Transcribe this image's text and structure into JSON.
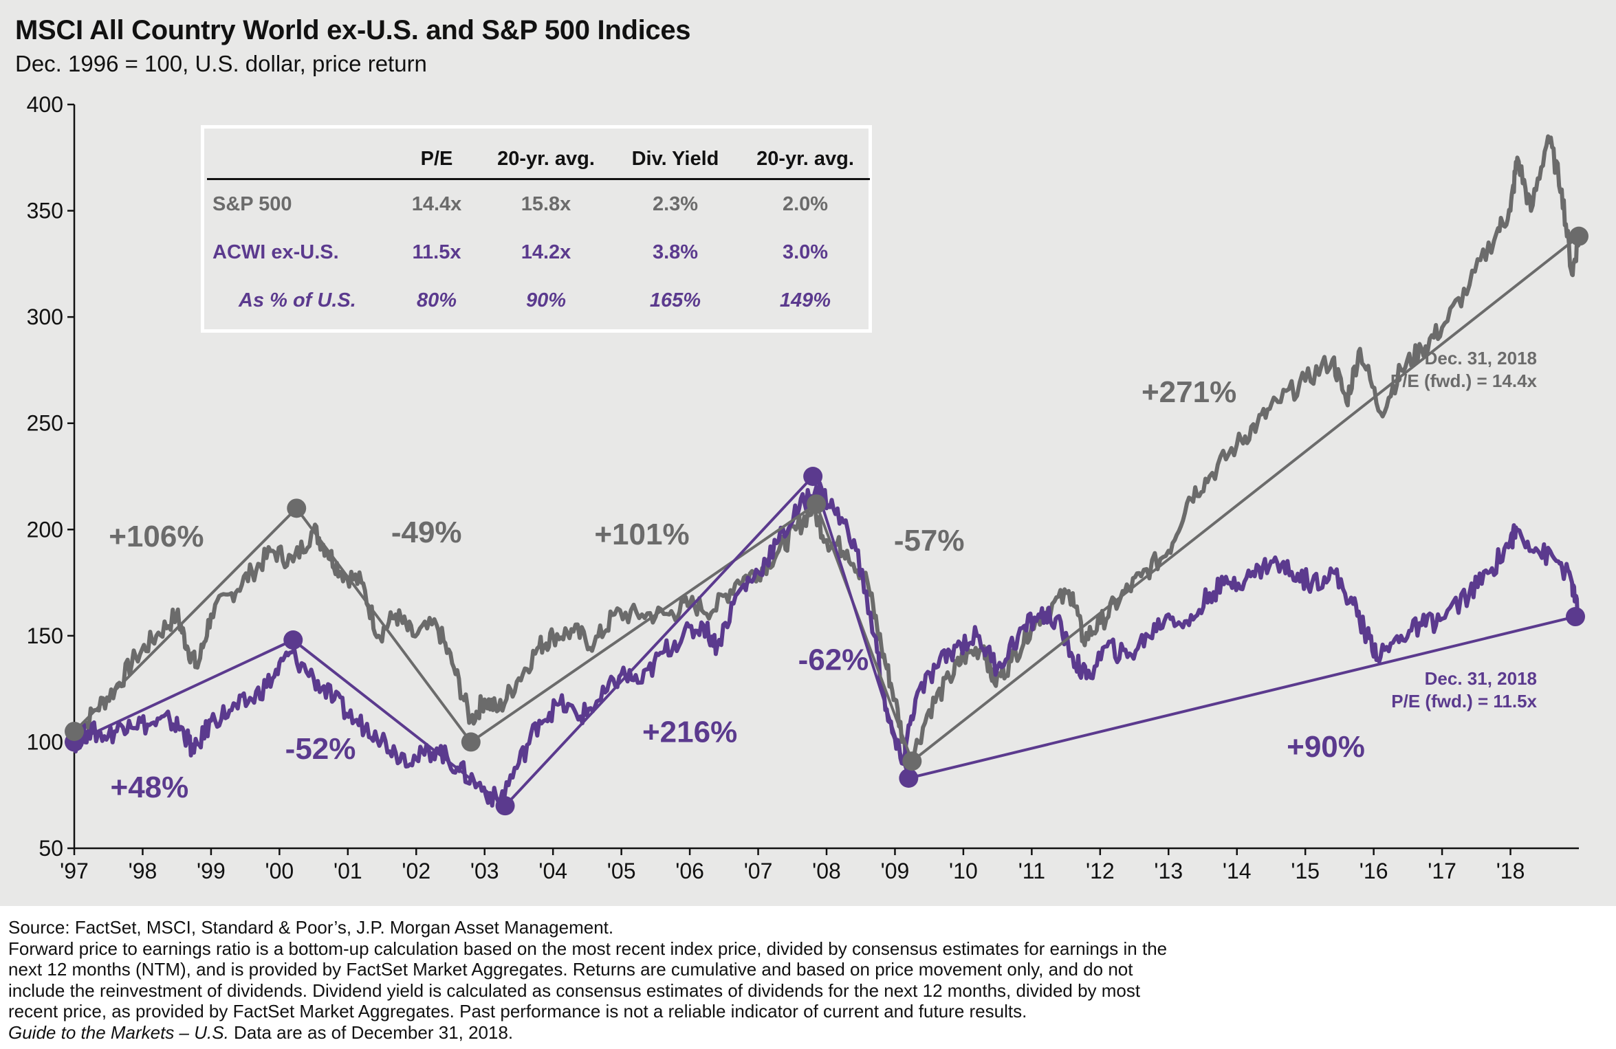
{
  "title": "MSCI All Country World ex-U.S. and S&P 500 Indices",
  "subtitle": "Dec. 1996 = 100, U.S. dollar, price return",
  "colors": {
    "sp500": "#6b6b6b",
    "acwi": "#5b3a8e",
    "background": "#e8e8e7"
  },
  "table": {
    "headers": [
      "",
      "P/E",
      "20-yr. avg.",
      "Div. Yield",
      "20-yr. avg."
    ],
    "rows": [
      {
        "label": "S&P 500",
        "cells": [
          "14.4x",
          "15.8x",
          "2.3%",
          "2.0%"
        ]
      },
      {
        "label": "ACWI ex-U.S.",
        "cells": [
          "11.5x",
          "14.2x",
          "3.8%",
          "3.0%"
        ]
      },
      {
        "label": "As % of U.S.",
        "cells": [
          "80%",
          "90%",
          "165%",
          "149%"
        ]
      }
    ]
  },
  "chart_data": {
    "type": "line",
    "title": "MSCI All Country World ex-U.S. and S&P 500 Indices",
    "ylabel": "Dec. 1996 = 100, U.S. dollar, price return",
    "ylim": [
      50,
      400
    ],
    "yticks": [
      50,
      100,
      150,
      200,
      250,
      300,
      350,
      400
    ],
    "xlim": [
      1997.0,
      2019.0
    ],
    "xticks": [
      {
        "label": "'97",
        "value": 1997
      },
      {
        "label": "'98",
        "value": 1998
      },
      {
        "label": "'99",
        "value": 1999
      },
      {
        "label": "'00",
        "value": 2000
      },
      {
        "label": "'01",
        "value": 2001
      },
      {
        "label": "'02",
        "value": 2002
      },
      {
        "label": "'03",
        "value": 2003
      },
      {
        "label": "'04",
        "value": 2004
      },
      {
        "label": "'05",
        "value": 2005
      },
      {
        "label": "'06",
        "value": 2006
      },
      {
        "label": "'07",
        "value": 2007
      },
      {
        "label": "'08",
        "value": 2008
      },
      {
        "label": "'09",
        "value": 2009
      },
      {
        "label": "'10",
        "value": 2010
      },
      {
        "label": "'11",
        "value": 2011
      },
      {
        "label": "'12",
        "value": 2012
      },
      {
        "label": "'13",
        "value": 2013
      },
      {
        "label": "'14",
        "value": 2014
      },
      {
        "label": "'15",
        "value": 2015
      },
      {
        "label": "'16",
        "value": 2016
      },
      {
        "label": "'17",
        "value": 2017
      },
      {
        "label": "'18",
        "value": 2018
      }
    ],
    "series": [
      {
        "name": "S&P 500",
        "x": [
          1997.0,
          1997.3,
          1997.6,
          1997.9,
          1998.2,
          1998.5,
          1998.65,
          1998.8,
          1999.0,
          1999.3,
          1999.6,
          1999.9,
          2000.2,
          2000.5,
          2000.7,
          2000.9,
          2001.2,
          2001.45,
          2001.7,
          2001.95,
          2002.3,
          2002.55,
          2002.8,
          2003.0,
          2003.2,
          2003.5,
          2003.8,
          2004.0,
          2004.3,
          2004.6,
          2004.9,
          2005.3,
          2005.7,
          2006.0,
          2006.35,
          2006.7,
          2007.0,
          2007.3,
          2007.55,
          2007.8,
          2008.0,
          2008.3,
          2008.6,
          2008.8,
          2009.0,
          2009.2,
          2009.5,
          2009.8,
          2010.0,
          2010.3,
          2010.45,
          2010.7,
          2011.0,
          2011.3,
          2011.6,
          2011.75,
          2012.0,
          2012.3,
          2012.6,
          2013.0,
          2013.3,
          2013.6,
          2014.0,
          2014.3,
          2014.6,
          2015.0,
          2015.4,
          2015.6,
          2015.8,
          2016.1,
          2016.4,
          2016.7,
          2017.0,
          2017.4,
          2017.8,
          2018.0,
          2018.1,
          2018.3,
          2018.55,
          2018.75,
          2018.9,
          2019.0
        ],
        "values": [
          100,
          115,
          125,
          140,
          150,
          160,
          145,
          135,
          160,
          170,
          180,
          190,
          185,
          200,
          190,
          180,
          175,
          150,
          160,
          150,
          155,
          135,
          110,
          120,
          115,
          130,
          145,
          150,
          152,
          146,
          160,
          160,
          160,
          165,
          162,
          176,
          180,
          190,
          200,
          210,
          195,
          190,
          175,
          145,
          120,
          88,
          115,
          130,
          140,
          145,
          128,
          138,
          155,
          165,
          170,
          148,
          156,
          168,
          178,
          190,
          215,
          225,
          240,
          250,
          260,
          270,
          280,
          260,
          285,
          255,
          275,
          285,
          295,
          315,
          340,
          350,
          375,
          350,
          385,
          360,
          320,
          338
        ]
      },
      {
        "name": "ACWI ex-U.S.",
        "x": [
          1997.0,
          1997.2,
          1997.5,
          1997.8,
          1998.1,
          1998.4,
          1998.6,
          1998.75,
          1999.0,
          1999.3,
          1999.6,
          1999.9,
          2000.15,
          2000.5,
          2000.8,
          2001.1,
          2001.4,
          2001.7,
          2002.0,
          2002.3,
          2002.6,
          2002.9,
          2003.2,
          2003.5,
          2003.8,
          2004.1,
          2004.4,
          2004.7,
          2005.0,
          2005.3,
          2005.6,
          2005.9,
          2006.2,
          2006.4,
          2006.7,
          2007.0,
          2007.3,
          2007.6,
          2007.85,
          2008.1,
          2008.4,
          2008.7,
          2008.9,
          2009.1,
          2009.3,
          2009.6,
          2009.9,
          2010.2,
          2010.5,
          2010.8,
          2011.1,
          2011.35,
          2011.6,
          2011.8,
          2012.1,
          2012.4,
          2012.7,
          2013.0,
          2013.3,
          2013.6,
          2013.9,
          2014.2,
          2014.5,
          2014.8,
          2015.1,
          2015.4,
          2015.7,
          2015.9,
          2016.1,
          2016.4,
          2016.7,
          2017.0,
          2017.4,
          2017.7,
          2018.0,
          2018.1,
          2018.4,
          2018.7,
          2018.9,
          2019.0
        ],
        "values": [
          100,
          105,
          103,
          110,
          108,
          110,
          105,
          95,
          110,
          115,
          120,
          130,
          142,
          130,
          120,
          110,
          105,
          95,
          92,
          97,
          88,
          80,
          72,
          90,
          110,
          118,
          112,
          120,
          132,
          128,
          142,
          150,
          155,
          145,
          170,
          180,
          195,
          210,
          220,
          210,
          195,
          150,
          110,
          90,
          120,
          135,
          145,
          150,
          135,
          150,
          160,
          158,
          140,
          130,
          145,
          140,
          150,
          160,
          155,
          170,
          175,
          178,
          185,
          180,
          175,
          180,
          165,
          150,
          140,
          150,
          155,
          158,
          170,
          180,
          195,
          200,
          190,
          185,
          175,
          158
        ]
      }
    ],
    "markers": [
      {
        "series": "ACWI ex-U.S.",
        "x": 1997.0,
        "y": 100
      },
      {
        "series": "ACWI ex-U.S.",
        "x": 2000.2,
        "y": 148
      },
      {
        "series": "ACWI ex-U.S.",
        "x": 2003.3,
        "y": 70
      },
      {
        "series": "ACWI ex-U.S.",
        "x": 2007.8,
        "y": 225
      },
      {
        "series": "ACWI ex-U.S.",
        "x": 2009.2,
        "y": 83
      },
      {
        "series": "ACWI ex-U.S.",
        "x": 2018.95,
        "y": 159
      },
      {
        "series": "S&P 500",
        "x": 1997.0,
        "y": 105
      },
      {
        "series": "S&P 500",
        "x": 2000.25,
        "y": 210
      },
      {
        "series": "S&P 500",
        "x": 2002.8,
        "y": 100
      },
      {
        "series": "S&P 500",
        "x": 2007.85,
        "y": 212
      },
      {
        "series": "S&P 500",
        "x": 2009.25,
        "y": 91
      },
      {
        "series": "S&P 500",
        "x": 2019.0,
        "y": 338
      }
    ],
    "annotations": [
      {
        "text": "+106%",
        "series": "S&P 500",
        "x": 1998.2,
        "y": 192
      },
      {
        "text": "-49%",
        "series": "S&P 500",
        "x": 2002.15,
        "y": 194
      },
      {
        "text": "+101%",
        "series": "S&P 500",
        "x": 2005.3,
        "y": 193
      },
      {
        "text": "-57%",
        "series": "S&P 500",
        "x": 2009.5,
        "y": 190
      },
      {
        "text": "+271%",
        "series": "S&P 500",
        "x": 2013.3,
        "y": 260
      },
      {
        "text": "+48%",
        "series": "ACWI ex-U.S.",
        "x": 1998.1,
        "y": 74
      },
      {
        "text": "-52%",
        "series": "ACWI ex-U.S.",
        "x": 2000.6,
        "y": 92
      },
      {
        "text": "+216%",
        "series": "ACWI ex-U.S.",
        "x": 2006.0,
        "y": 100
      },
      {
        "text": "-62%",
        "series": "ACWI ex-U.S.",
        "x": 2008.1,
        "y": 134
      },
      {
        "text": "+90%",
        "series": "ACWI ex-U.S.",
        "x": 2015.3,
        "y": 93
      }
    ],
    "end_labels": [
      {
        "series": "S&P 500",
        "lines": [
          "Dec. 31, 2018",
          "P/E (fwd.) = 14.4x"
        ]
      },
      {
        "series": "ACWI ex-U.S.",
        "lines": [
          "Dec. 31, 2018",
          "P/E (fwd.) = 11.5x"
        ]
      }
    ]
  },
  "footer": {
    "source": "Source: FactSet, MSCI, Standard & Poor’s, J.P. Morgan Asset Management.",
    "note_lines": [
      "Forward price to earnings ratio is a bottom-up calculation based on the most recent index price, divided by consensus estimates for earnings in the",
      "next 12 months (NTM), and is provided by FactSet Market Aggregates. Returns are cumulative and based on price movement only, and do not",
      "include the reinvestment of dividends. Dividend yield is calculated as consensus estimates of dividends for the next 12 months, divided by most",
      "recent price, as provided by FactSet Market Aggregates. Past performance is not a reliable indicator of current and future results."
    ],
    "guide_italic": "Guide to the Markets – U.S.",
    "guide_rest": " Data are as of December 31, 2018."
  }
}
